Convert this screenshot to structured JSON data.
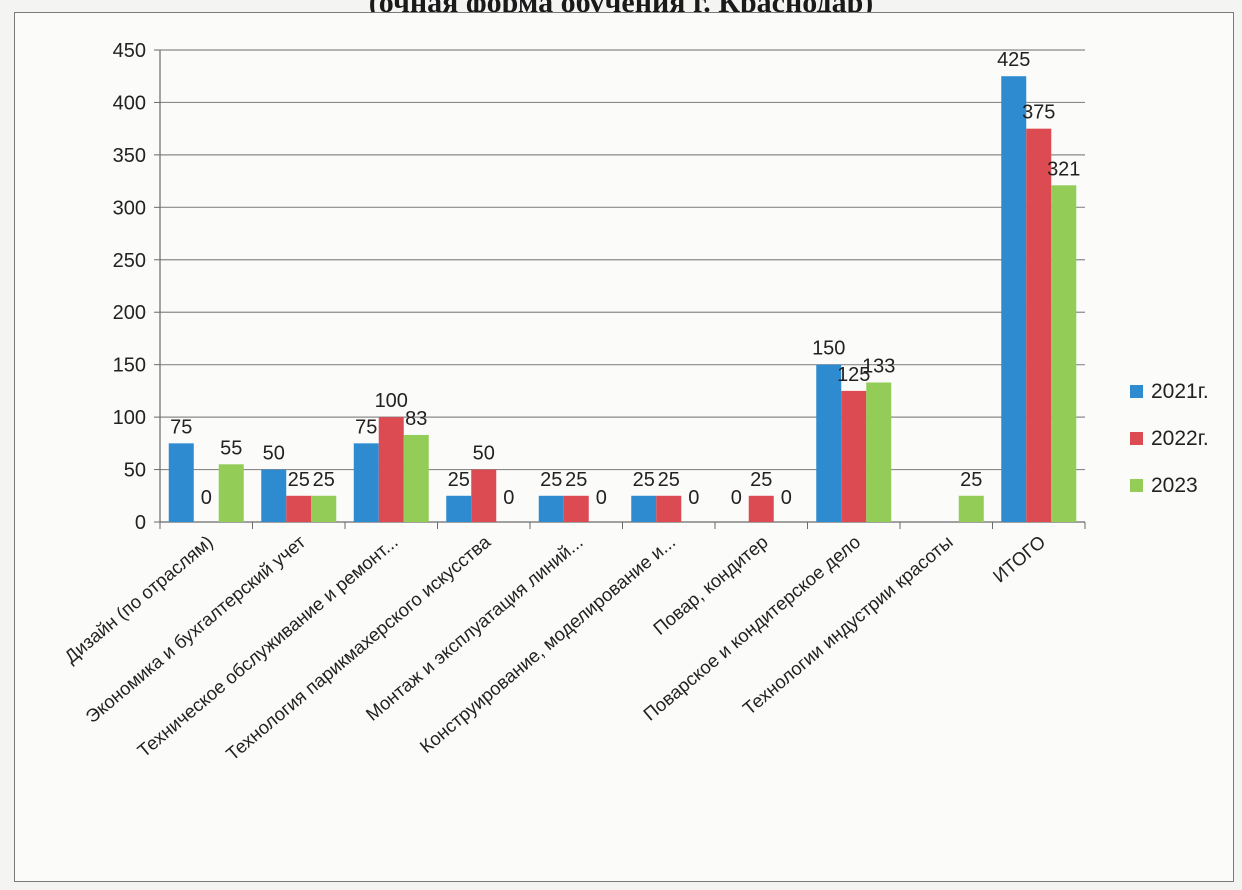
{
  "title": "(очная форма обучения г. Краснодар)",
  "colors": {
    "s2021": "#2e8bd0",
    "s2022": "#dc4a52",
    "s2023": "#93cc57"
  },
  "chart_data": {
    "type": "bar",
    "title": "(очная форма обучения г. Краснодар)",
    "ylim": [
      0,
      450
    ],
    "yticks": [
      0,
      50,
      100,
      150,
      200,
      250,
      300,
      350,
      400,
      450
    ],
    "grid": true,
    "legend": "right",
    "categories": [
      "Дизайн (по отраслям)",
      "Экономика и бухгалтерский учет",
      "Техническое обслуживание и ремонт...",
      "Технология парикмахерского искусства",
      "Монтаж и эксплуатация линий...",
      "Конструирование, моделирование и...",
      "Повар, кондитер",
      "Поварское и кондитерское дело",
      "Технологии индустрии красоты",
      "ИТОГО"
    ],
    "series": [
      {
        "name": "2021г.",
        "values": [
          75,
          50,
          75,
          25,
          25,
          25,
          0,
          150,
          null,
          425
        ],
        "labels": [
          "75",
          "50",
          "75",
          "25",
          "25",
          "25",
          "0",
          "150",
          "",
          "425"
        ]
      },
      {
        "name": "2022г.",
        "values": [
          0,
          25,
          100,
          50,
          25,
          25,
          25,
          125,
          null,
          375
        ],
        "labels": [
          "0",
          "25",
          "100",
          "50",
          "25",
          "25",
          "25",
          "125",
          "",
          "375"
        ]
      },
      {
        "name": "2023",
        "values": [
          55,
          25,
          83,
          0,
          0,
          0,
          0,
          133,
          25,
          321
        ],
        "labels": [
          "55",
          "25",
          "83",
          "0",
          "0",
          "0",
          "0",
          "133",
          "25",
          "321"
        ]
      }
    ]
  }
}
